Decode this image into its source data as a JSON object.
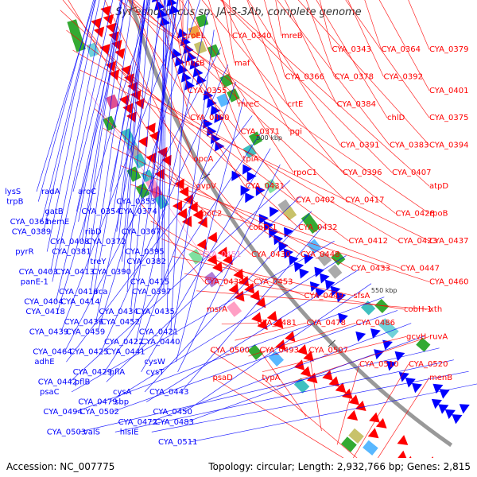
{
  "title": "Synechococcus sp. JA-3-3Ab, complete genome",
  "footer": {
    "accession": "Accession: NC_007775",
    "summary": "Topology: circular; Length: 2,932,766 bp; Genes: 2,815"
  },
  "colors": {
    "forward": "#ff0000",
    "reverse": "#0000ff",
    "highlight": "#ff88cc",
    "backbone": "#999999"
  },
  "scale_ticks": [
    {
      "label": "350 kbp",
      "kbp": 350
    },
    {
      "label": "400 kbp",
      "kbp": 400
    },
    {
      "label": "450 kbp",
      "kbp": 450
    },
    {
      "label": "500 kbp",
      "kbp": 500
    },
    {
      "label": "550 kbp",
      "kbp": 550
    }
  ],
  "right_labels": [
    {
      "text": "groEL",
      "color": "red"
    },
    {
      "text": "CYA_0340",
      "color": "red"
    },
    {
      "text": "mreB",
      "color": "red"
    },
    {
      "text": "CYA_0343",
      "color": "red"
    },
    {
      "text": "CYA_0364",
      "color": "red"
    },
    {
      "text": "CYA_0379",
      "color": "red"
    },
    {
      "text": "nusB",
      "color": "red"
    },
    {
      "text": "maf",
      "color": "red"
    },
    {
      "text": "CYA_0366",
      "color": "red"
    },
    {
      "text": "CYA_0378",
      "color": "red"
    },
    {
      "text": "CYA_0392",
      "color": "red"
    },
    {
      "text": "CYA_0401",
      "color": "red"
    },
    {
      "text": "CYA_0355",
      "color": "red"
    },
    {
      "text": "mreC",
      "color": "red"
    },
    {
      "text": "crtE",
      "color": "red"
    },
    {
      "text": "CYA_0384",
      "color": "red"
    },
    {
      "text": "chlD",
      "color": "red"
    },
    {
      "text": "CYA_0375",
      "color": "red"
    },
    {
      "text": "CYA_0400",
      "color": "red"
    },
    {
      "text": "CYA_0371",
      "color": "red"
    },
    {
      "text": "pgi",
      "color": "red"
    },
    {
      "text": "CYA_0391",
      "color": "red"
    },
    {
      "text": "CYA_0383",
      "color": "red"
    },
    {
      "text": "CYA_0394",
      "color": "red"
    },
    {
      "text": "opcA",
      "color": "red"
    },
    {
      "text": "tpiA",
      "color": "red"
    },
    {
      "text": "rpoC1",
      "color": "red"
    },
    {
      "text": "CYA_0396",
      "color": "red"
    },
    {
      "text": "CYA_0407",
      "color": "red"
    },
    {
      "text": "atpD",
      "color": "red"
    },
    {
      "text": "gvpV",
      "color": "red"
    },
    {
      "text": "CYA_0431",
      "color": "red"
    },
    {
      "text": "CYA_0402",
      "color": "red"
    },
    {
      "text": "CYA_0417",
      "color": "red"
    },
    {
      "text": "CYA_0428",
      "color": "red"
    },
    {
      "text": "rpoB",
      "color": "red"
    },
    {
      "text": "rpoC2",
      "color": "red"
    },
    {
      "text": "cobD-1",
      "color": "red"
    },
    {
      "text": "CYA_0432",
      "color": "red"
    },
    {
      "text": "CYA_0412",
      "color": "red"
    },
    {
      "text": "CYA_0423",
      "color": "red"
    },
    {
      "text": "CYA_0437",
      "color": "red"
    },
    {
      "text": "CYA_0451",
      "color": "pink"
    },
    {
      "text": "CYA_0430",
      "color": "red"
    },
    {
      "text": "CYA_0448",
      "color": "red"
    },
    {
      "text": "CYA_0433",
      "color": "red"
    },
    {
      "text": "CYA_0447",
      "color": "red"
    },
    {
      "text": "CYA_0460",
      "color": "red"
    },
    {
      "text": "CYA_0438",
      "color": "red"
    },
    {
      "text": "CYA_0453",
      "color": "red"
    },
    {
      "text": "CYA_0449",
      "color": "red"
    },
    {
      "text": "sfsA",
      "color": "red"
    },
    {
      "text": "cobH-1",
      "color": "red"
    },
    {
      "text": "xth",
      "color": "red"
    },
    {
      "text": "msrA",
      "color": "red"
    },
    {
      "text": "CYA_0481",
      "color": "red"
    },
    {
      "text": "CYA_0478",
      "color": "red"
    },
    {
      "text": "CYA_0486",
      "color": "red"
    },
    {
      "text": "gcvH",
      "color": "red"
    },
    {
      "text": "ruvA",
      "color": "red"
    },
    {
      "text": "CYA_0500",
      "color": "red"
    },
    {
      "text": "CYA_0493",
      "color": "red"
    },
    {
      "text": "CYA_0507",
      "color": "red"
    },
    {
      "text": "CYA_0510",
      "color": "red"
    },
    {
      "text": "CYA_0520",
      "color": "red"
    },
    {
      "text": "menB",
      "color": "red"
    },
    {
      "text": "psaD",
      "color": "red"
    },
    {
      "text": "typA",
      "color": "red"
    }
  ],
  "left_labels": [
    {
      "text": "lysS"
    },
    {
      "text": "radA"
    },
    {
      "text": "aroC"
    },
    {
      "text": "CYA_0353"
    },
    {
      "text": "trpB"
    },
    {
      "text": "gatB"
    },
    {
      "text": "CYA_0354"
    },
    {
      "text": "CYA_0374"
    },
    {
      "text": "CYA_0361"
    },
    {
      "text": "hemE"
    },
    {
      "text": "ribD"
    },
    {
      "text": "CYA_0367"
    },
    {
      "text": "CYA_0389"
    },
    {
      "text": "CYA_0408"
    },
    {
      "text": "CYA_0372"
    },
    {
      "text": "CYA_0395"
    },
    {
      "text": "pyrR"
    },
    {
      "text": "CYA_0381"
    },
    {
      "text": "treY"
    },
    {
      "text": "CYA_0382"
    },
    {
      "text": "CYA_0403"
    },
    {
      "text": "CYA_0413"
    },
    {
      "text": "CYA_0390"
    },
    {
      "text": "CYA_0415"
    },
    {
      "text": "panE-1"
    },
    {
      "text": "CYA_0416"
    },
    {
      "text": "rca"
    },
    {
      "text": "CYA_0397"
    },
    {
      "text": "CYA_0404"
    },
    {
      "text": "CYA_0414"
    },
    {
      "text": "CYA_0434"
    },
    {
      "text": "CYA_0435"
    },
    {
      "text": "CYA_0418"
    },
    {
      "text": "CYA_0436"
    },
    {
      "text": "CYA_0452"
    },
    {
      "text": "CYA_0421"
    },
    {
      "text": "CYA_0439"
    },
    {
      "text": "CYA_0459"
    },
    {
      "text": "CYA_0422"
    },
    {
      "text": "CYA_0440"
    },
    {
      "text": "CYA_0464"
    },
    {
      "text": "CYA_0425"
    },
    {
      "text": "CYA_0441"
    },
    {
      "text": "cysW"
    },
    {
      "text": "adhE"
    },
    {
      "text": "CYA_0429"
    },
    {
      "text": "pflA"
    },
    {
      "text": "cysT"
    },
    {
      "text": "CYA_0442"
    },
    {
      "text": "pflB"
    },
    {
      "text": "cysA"
    },
    {
      "text": "CYA_0443"
    },
    {
      "text": "psaC"
    },
    {
      "text": "CYA_0479"
    },
    {
      "text": "sbp"
    },
    {
      "text": "CYA_0450"
    },
    {
      "text": "CYA_0494"
    },
    {
      "text": "CYA_0502"
    },
    {
      "text": "CYA_0472"
    },
    {
      "text": "CYA_0483"
    },
    {
      "text": "CYA_0503"
    },
    {
      "text": "valS"
    },
    {
      "text": "hisIE"
    },
    {
      "text": "CYA_0511"
    }
  ]
}
